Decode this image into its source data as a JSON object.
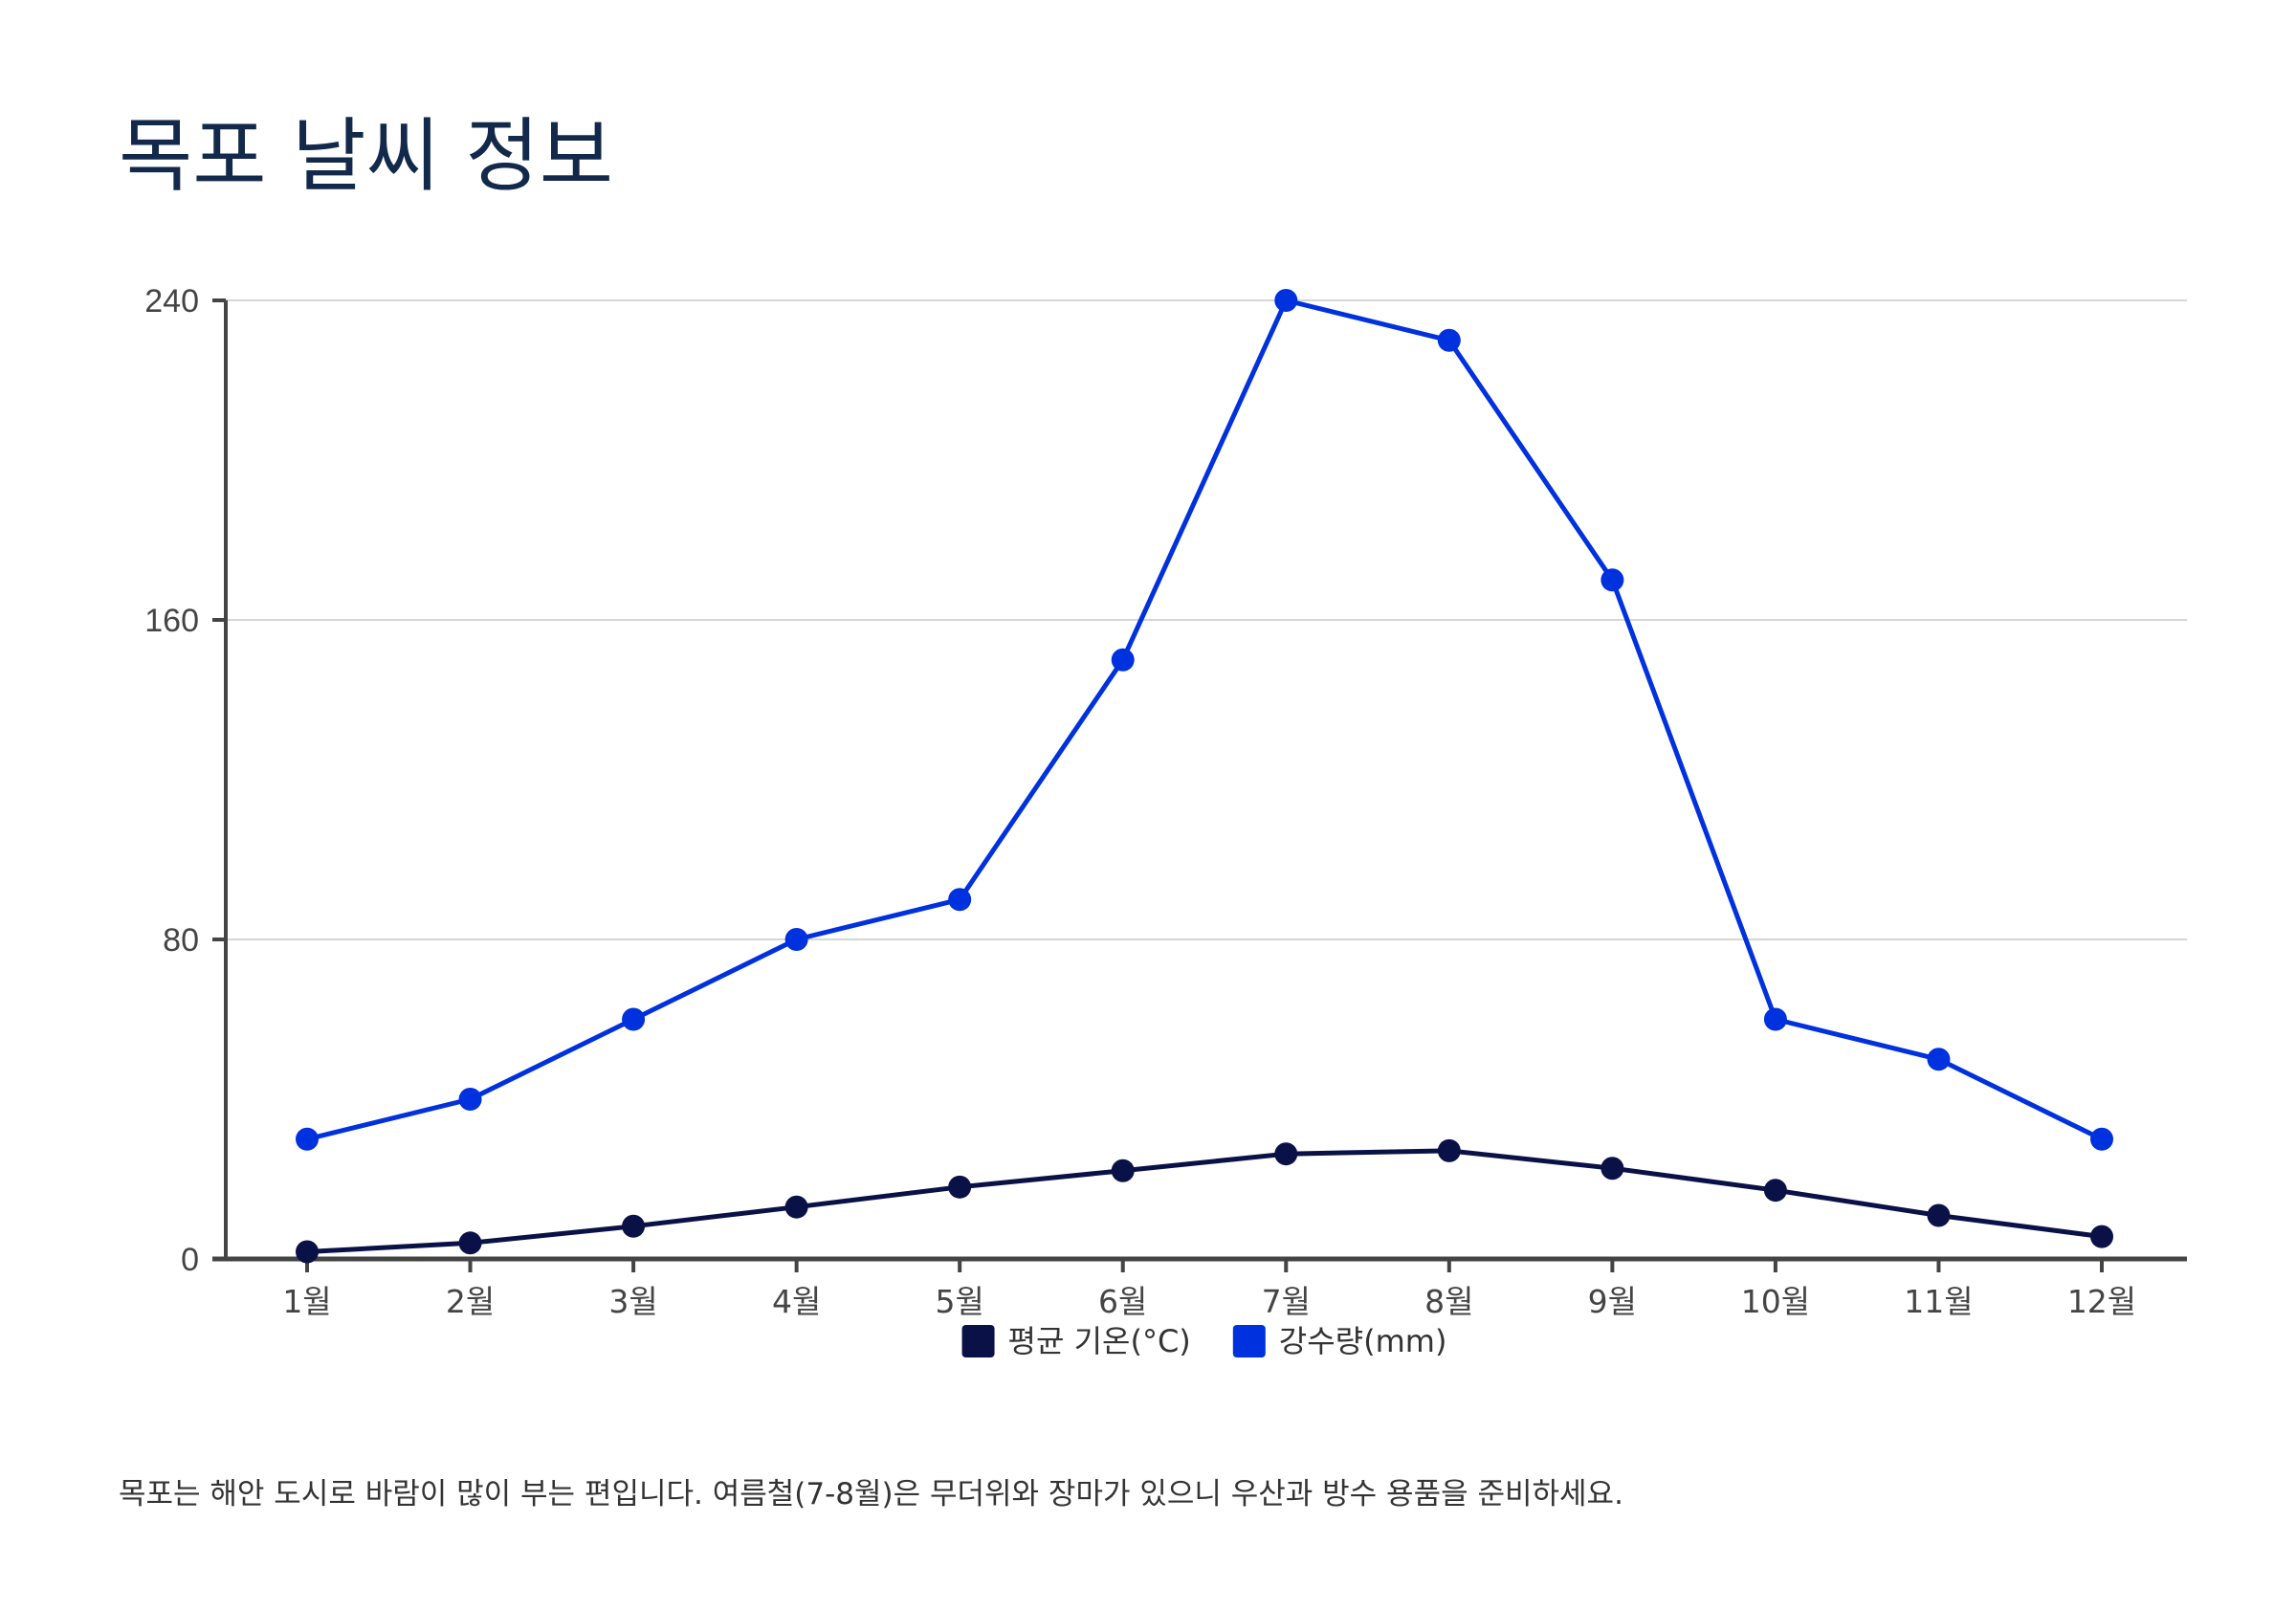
{
  "page": {
    "title": "목포 날씨 정보",
    "note": "목포는 해안 도시로 바람이 많이 부는 편입니다. 여름철(7-8월)은 무더위와 장마가 있으니 우산과 방수 용품을 준비하세요."
  },
  "chart_data": {
    "type": "line",
    "title": "",
    "xlabel": "",
    "ylabel": "",
    "categories": [
      "1월",
      "2월",
      "3월",
      "4월",
      "5월",
      "6월",
      "7월",
      "8월",
      "9월",
      "10월",
      "11월",
      "12월"
    ],
    "ylim": [
      0,
      240
    ],
    "yticks": [
      "0",
      "80",
      "160",
      "240"
    ],
    "grid": true,
    "legend_position": "bottom-center",
    "series": [
      {
        "name": "평균 기온(°C)",
        "color": "#0a1147",
        "values": [
          1.8,
          4.0,
          8.2,
          13.0,
          18.0,
          22.1,
          26.3,
          27.1,
          22.7,
          17.2,
          10.9,
          5.6
        ]
      },
      {
        "name": "강수량(mm)",
        "color": "#0031de",
        "values": [
          30,
          40,
          60,
          80,
          90,
          150,
          240,
          230,
          170,
          60,
          50,
          30
        ]
      }
    ]
  }
}
